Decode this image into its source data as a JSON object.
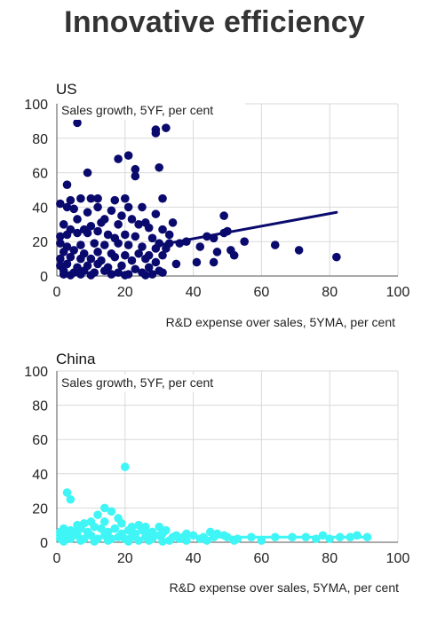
{
  "title": "Innovative efficiency",
  "chart_data": [
    {
      "type": "scatter",
      "panel": "US",
      "title": "US",
      "ylabel": "Sales growth, 5YF, per cent",
      "xlabel": "R&D expense over sales, 5YMA, per cent",
      "xlim": [
        0,
        100
      ],
      "ylim": [
        0,
        100
      ],
      "xticks": [
        0,
        20,
        40,
        60,
        80,
        100
      ],
      "yticks": [
        0,
        20,
        40,
        60,
        80,
        100
      ],
      "grid": true,
      "color": "#0a0a6e",
      "points": [
        [
          6,
          89
        ],
        [
          29,
          85
        ],
        [
          32,
          86
        ],
        [
          29,
          83
        ],
        [
          18,
          68
        ],
        [
          21,
          70
        ],
        [
          9,
          60
        ],
        [
          23,
          62
        ],
        [
          23,
          58
        ],
        [
          30,
          63
        ],
        [
          3,
          53
        ],
        [
          1,
          42
        ],
        [
          3,
          40
        ],
        [
          5,
          39
        ],
        [
          4,
          44
        ],
        [
          7,
          45
        ],
        [
          10,
          45
        ],
        [
          12,
          45
        ],
        [
          17,
          44
        ],
        [
          20,
          45
        ],
        [
          31,
          45
        ],
        [
          9,
          37
        ],
        [
          12,
          40
        ],
        [
          16,
          38
        ],
        [
          21,
          40
        ],
        [
          25,
          40
        ],
        [
          29,
          36
        ],
        [
          6,
          33
        ],
        [
          14,
          33
        ],
        [
          19,
          35
        ],
        [
          22,
          33
        ],
        [
          26,
          31
        ],
        [
          34,
          31
        ],
        [
          2,
          30
        ],
        [
          4,
          27
        ],
        [
          8,
          27
        ],
        [
          10,
          29
        ],
        [
          13,
          31
        ],
        [
          18,
          30
        ],
        [
          24,
          30
        ],
        [
          27,
          28
        ],
        [
          31,
          27
        ],
        [
          1,
          23
        ],
        [
          3,
          24
        ],
        [
          6,
          25
        ],
        [
          9,
          25
        ],
        [
          12,
          26
        ],
        [
          15,
          24
        ],
        [
          17,
          22
        ],
        [
          20,
          24
        ],
        [
          23,
          23
        ],
        [
          28,
          22
        ],
        [
          33,
          24
        ],
        [
          36,
          19
        ],
        [
          30,
          19
        ],
        [
          1,
          19
        ],
        [
          3,
          17
        ],
        [
          7,
          18
        ],
        [
          11,
          19
        ],
        [
          14,
          18
        ],
        [
          18,
          19
        ],
        [
          21,
          18
        ],
        [
          25,
          17
        ],
        [
          29,
          16
        ],
        [
          32,
          16
        ],
        [
          2,
          14
        ],
        [
          5,
          15
        ],
        [
          8,
          13
        ],
        [
          12,
          14
        ],
        [
          16,
          13
        ],
        [
          20,
          12
        ],
        [
          24,
          13
        ],
        [
          27,
          12
        ],
        [
          31,
          12
        ],
        [
          1,
          10
        ],
        [
          4,
          11
        ],
        [
          7,
          10
        ],
        [
          10,
          10
        ],
        [
          13,
          9
        ],
        [
          17,
          11
        ],
        [
          22,
          9
        ],
        [
          26,
          10
        ],
        [
          29,
          8
        ],
        [
          1,
          6
        ],
        [
          3,
          7
        ],
        [
          6,
          5
        ],
        [
          9,
          6
        ],
        [
          12,
          7
        ],
        [
          15,
          5
        ],
        [
          19,
          6
        ],
        [
          23,
          4
        ],
        [
          27,
          5
        ],
        [
          30,
          3
        ],
        [
          2,
          3
        ],
        [
          5,
          2
        ],
        [
          8,
          3
        ],
        [
          11,
          2
        ],
        [
          14,
          3
        ],
        [
          18,
          2
        ],
        [
          21,
          1
        ],
        [
          25,
          2
        ],
        [
          28,
          1
        ],
        [
          31,
          2
        ],
        [
          2,
          1
        ],
        [
          4,
          0.5
        ],
        [
          7,
          1
        ],
        [
          10,
          0.5
        ],
        [
          16,
          1
        ],
        [
          20,
          0.5
        ],
        [
          26,
          0.5
        ],
        [
          42,
          17
        ],
        [
          44,
          23
        ],
        [
          46,
          22
        ],
        [
          47,
          14
        ],
        [
          46,
          8
        ],
        [
          49,
          35
        ],
        [
          49,
          25
        ],
        [
          50,
          26
        ],
        [
          52,
          12
        ],
        [
          55,
          20
        ],
        [
          51,
          15
        ],
        [
          41,
          8
        ],
        [
          35,
          7
        ],
        [
          64,
          18
        ],
        [
          71,
          15
        ],
        [
          82,
          11
        ],
        [
          38,
          20
        ],
        [
          33,
          19
        ]
      ],
      "trendline": {
        "x": [
          30,
          82
        ],
        "y": [
          18,
          37
        ]
      }
    },
    {
      "type": "scatter",
      "panel": "China",
      "title": "China",
      "ylabel": "Sales growth, 5YF, per cent",
      "xlabel": "R&D expense over sales, 5YMA, per cent",
      "xlim": [
        0,
        100
      ],
      "ylim": [
        0,
        100
      ],
      "xticks": [
        0,
        20,
        40,
        60,
        80,
        100
      ],
      "yticks": [
        0,
        20,
        40,
        60,
        80,
        100
      ],
      "grid": true,
      "color": "#3ff5f5",
      "points": [
        [
          20,
          44
        ],
        [
          3,
          29
        ],
        [
          4,
          25
        ],
        [
          14,
          20
        ],
        [
          16,
          18
        ],
        [
          12,
          16
        ],
        [
          18,
          14
        ],
        [
          10,
          12
        ],
        [
          8,
          11
        ],
        [
          6,
          10
        ],
        [
          14,
          12
        ],
        [
          19,
          11
        ],
        [
          22,
          9
        ],
        [
          24,
          10
        ],
        [
          26,
          9
        ],
        [
          30,
          9
        ],
        [
          2,
          8
        ],
        [
          4,
          7
        ],
        [
          7,
          8
        ],
        [
          11,
          9
        ],
        [
          13,
          8
        ],
        [
          17,
          8
        ],
        [
          21,
          7
        ],
        [
          25,
          7
        ],
        [
          28,
          6
        ],
        [
          32,
          7
        ],
        [
          1,
          6
        ],
        [
          3,
          5
        ],
        [
          5,
          6
        ],
        [
          9,
          6
        ],
        [
          15,
          6
        ],
        [
          19,
          5
        ],
        [
          23,
          5
        ],
        [
          27,
          5
        ],
        [
          31,
          5
        ],
        [
          35,
          4
        ],
        [
          38,
          5
        ],
        [
          1,
          4
        ],
        [
          6,
          4
        ],
        [
          10,
          4
        ],
        [
          14,
          4
        ],
        [
          18,
          3
        ],
        [
          22,
          3
        ],
        [
          26,
          3
        ],
        [
          30,
          4
        ],
        [
          34,
          3
        ],
        [
          37,
          3
        ],
        [
          40,
          4
        ],
        [
          43,
          3
        ],
        [
          45,
          6
        ],
        [
          47,
          5
        ],
        [
          49,
          4
        ],
        [
          1,
          2
        ],
        [
          2,
          3
        ],
        [
          4,
          2
        ],
        [
          8,
          2
        ],
        [
          12,
          2
        ],
        [
          16,
          2
        ],
        [
          20,
          2
        ],
        [
          24,
          1
        ],
        [
          28,
          2
        ],
        [
          33,
          1
        ],
        [
          36,
          2
        ],
        [
          42,
          2
        ],
        [
          46,
          3
        ],
        [
          50,
          3
        ],
        [
          53,
          2
        ],
        [
          57,
          3
        ],
        [
          64,
          3
        ],
        [
          69,
          3
        ],
        [
          73,
          3
        ],
        [
          76,
          2
        ],
        [
          78,
          4
        ],
        [
          80,
          2
        ],
        [
          83,
          3
        ],
        [
          86,
          3
        ],
        [
          88,
          4
        ],
        [
          91,
          3
        ],
        [
          2,
          0.5
        ],
        [
          7,
          1
        ],
        [
          11,
          0.5
        ],
        [
          15,
          1
        ],
        [
          21,
          0.5
        ],
        [
          27,
          1
        ],
        [
          31,
          0.5
        ],
        [
          38,
          1
        ],
        [
          44,
          1
        ],
        [
          52,
          1
        ],
        [
          60,
          1
        ]
      ],
      "trendline": {
        "x": [
          47,
          91
        ],
        "y": [
          3,
          3
        ]
      }
    }
  ]
}
